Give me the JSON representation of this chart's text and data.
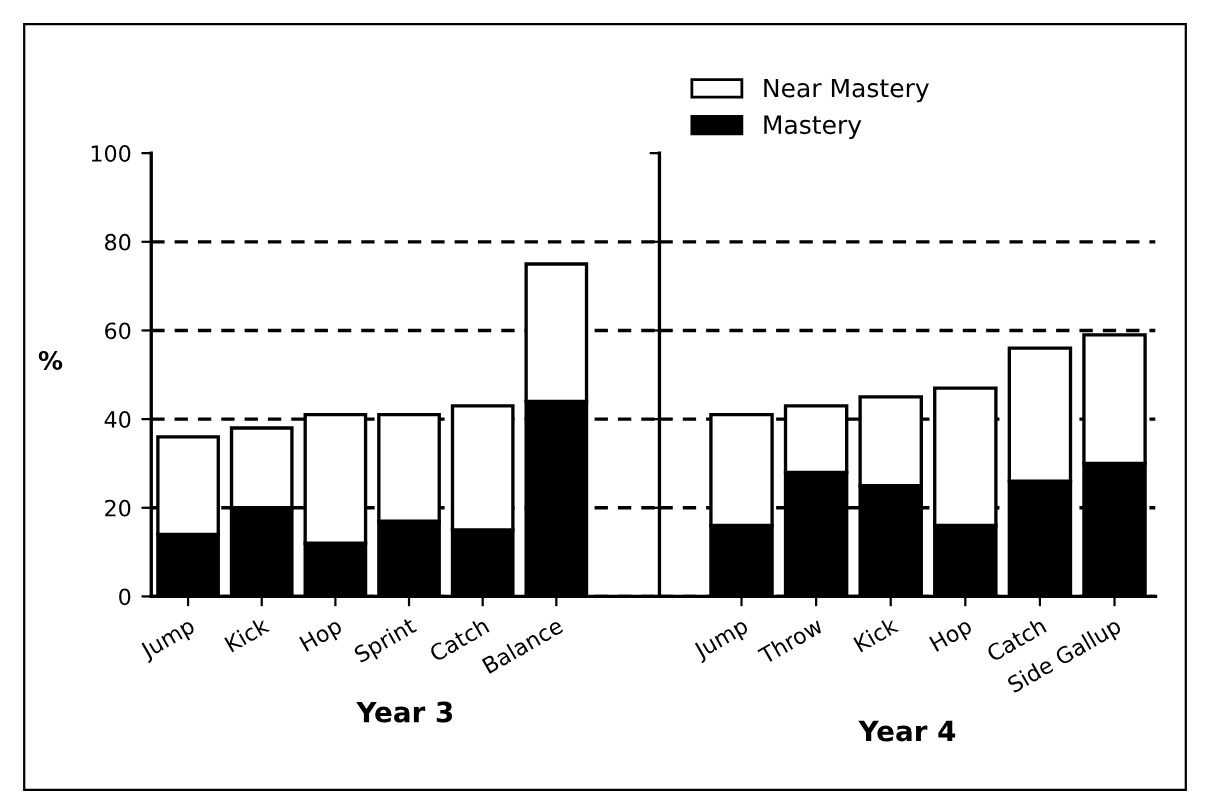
{
  "chart_data": [
    {
      "type": "bar",
      "stacked": true,
      "xlabel": "Year 3",
      "ylabel": "%",
      "categories": [
        "Jump",
        "Kick",
        "Hop",
        "Sprint",
        "Catch",
        "Balance"
      ],
      "series": [
        {
          "color": "#000000",
          "values": [
            14,
            20,
            12,
            17,
            15,
            44
          ]
        },
        {
          "color": "#ffffff",
          "values": [
            22,
            18,
            29,
            24,
            28,
            31
          ]
        }
      ],
      "ylim": [
        0,
        100
      ],
      "yticks": [
        0,
        20,
        40,
        60,
        80,
        100
      ],
      "grid": "y",
      "legend": false
    },
    {
      "type": "bar",
      "stacked": true,
      "xlabel": "Year 4",
      "categories": [
        "Jump",
        "Throw",
        "Kick",
        "Hop",
        "Catch",
        "Side Gallup"
      ],
      "series": [
        {
          "name": "Mastery",
          "color": "#000000",
          "values": [
            16,
            28,
            25,
            16,
            26,
            30
          ]
        },
        {
          "name": "Near Mastery",
          "color": "#ffffff",
          "values": [
            25,
            15,
            20,
            31,
            30,
            29
          ]
        }
      ],
      "ylim": [
        0,
        100
      ],
      "yticks": [
        0,
        20,
        40,
        60,
        80,
        100
      ],
      "grid": "y",
      "legend": "top left",
      "tick_labels": "x"
    }
  ]
}
